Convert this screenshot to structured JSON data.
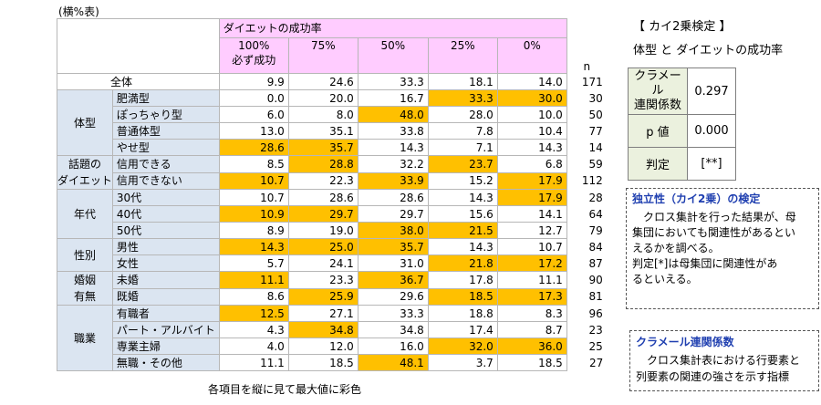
{
  "caption": "(横%表)",
  "header": {
    "group_title": "ダイエットの成功率",
    "columns": [
      {
        "line1": "100%",
        "line2": "必ず成功"
      },
      {
        "line1": "75%",
        "line2": ""
      },
      {
        "line1": "50%",
        "line2": ""
      },
      {
        "line1": "25%",
        "line2": ""
      },
      {
        "line1": "0%",
        "line2": ""
      }
    ],
    "n_label": "n"
  },
  "overall": {
    "label": "全体",
    "values": [
      "9.9",
      "24.6",
      "33.3",
      "18.1",
      "14.0"
    ],
    "n": "171"
  },
  "groups": [
    {
      "label_lines": [
        "体型"
      ],
      "rows": [
        {
          "label": "肥満型",
          "values": [
            "0.0",
            "20.0",
            "16.7",
            "33.3",
            "30.0"
          ],
          "hl": [
            false,
            false,
            false,
            true,
            true
          ],
          "n": "30"
        },
        {
          "label": "ぽっちゃり型",
          "values": [
            "6.0",
            "8.0",
            "48.0",
            "28.0",
            "10.0"
          ],
          "hl": [
            false,
            false,
            true,
            false,
            false
          ],
          "n": "50"
        },
        {
          "label": "普通体型",
          "values": [
            "13.0",
            "35.1",
            "33.8",
            "7.8",
            "10.4"
          ],
          "hl": [
            false,
            false,
            false,
            false,
            false
          ],
          "n": "77"
        },
        {
          "label": "やせ型",
          "values": [
            "28.6",
            "35.7",
            "14.3",
            "7.1",
            "14.3"
          ],
          "hl": [
            true,
            true,
            false,
            false,
            false
          ],
          "n": "14"
        }
      ]
    },
    {
      "label_lines": [
        "話題の",
        "ダイエット"
      ],
      "rows": [
        {
          "label": "信用できる",
          "values": [
            "8.5",
            "28.8",
            "32.2",
            "23.7",
            "6.8"
          ],
          "hl": [
            false,
            true,
            false,
            true,
            false
          ],
          "n": "59"
        },
        {
          "label": "信用できない",
          "values": [
            "10.7",
            "22.3",
            "33.9",
            "15.2",
            "17.9"
          ],
          "hl": [
            true,
            false,
            true,
            false,
            true
          ],
          "n": "112"
        }
      ]
    },
    {
      "label_lines": [
        "年代"
      ],
      "rows": [
        {
          "label": "30代",
          "values": [
            "10.7",
            "28.6",
            "28.6",
            "14.3",
            "17.9"
          ],
          "hl": [
            false,
            false,
            false,
            false,
            true
          ],
          "n": "28"
        },
        {
          "label": "40代",
          "values": [
            "10.9",
            "29.7",
            "29.7",
            "15.6",
            "14.1"
          ],
          "hl": [
            true,
            true,
            false,
            false,
            false
          ],
          "n": "64"
        },
        {
          "label": "50代",
          "values": [
            "8.9",
            "19.0",
            "38.0",
            "21.5",
            "12.7"
          ],
          "hl": [
            false,
            false,
            true,
            true,
            false
          ],
          "n": "79"
        }
      ]
    },
    {
      "label_lines": [
        "性別"
      ],
      "rows": [
        {
          "label": "男性",
          "values": [
            "14.3",
            "25.0",
            "35.7",
            "14.3",
            "10.7"
          ],
          "hl": [
            true,
            true,
            true,
            false,
            false
          ],
          "n": "84"
        },
        {
          "label": "女性",
          "values": [
            "5.7",
            "24.1",
            "31.0",
            "21.8",
            "17.2"
          ],
          "hl": [
            false,
            false,
            false,
            true,
            true
          ],
          "n": "87"
        }
      ]
    },
    {
      "label_lines": [
        "婚姻",
        "有無"
      ],
      "rows": [
        {
          "label": "未婚",
          "values": [
            "11.1",
            "23.3",
            "36.7",
            "17.8",
            "11.1"
          ],
          "hl": [
            true,
            false,
            true,
            false,
            false
          ],
          "n": "90"
        },
        {
          "label": "既婚",
          "values": [
            "8.6",
            "25.9",
            "29.6",
            "18.5",
            "17.3"
          ],
          "hl": [
            false,
            true,
            false,
            true,
            true
          ],
          "n": "81"
        }
      ]
    },
    {
      "label_lines": [
        "職業"
      ],
      "rows": [
        {
          "label": "有職者",
          "values": [
            "12.5",
            "27.1",
            "33.3",
            "18.8",
            "8.3"
          ],
          "hl": [
            true,
            false,
            false,
            false,
            false
          ],
          "n": "96"
        },
        {
          "label": "パート・アルバイト",
          "values": [
            "4.3",
            "34.8",
            "34.8",
            "17.4",
            "8.7"
          ],
          "hl": [
            false,
            true,
            false,
            false,
            false
          ],
          "n": "23"
        },
        {
          "label": "専業主婦",
          "values": [
            "4.0",
            "12.0",
            "16.0",
            "32.0",
            "36.0"
          ],
          "hl": [
            false,
            false,
            false,
            true,
            true
          ],
          "n": "25"
        },
        {
          "label": "無職・その他",
          "values": [
            "11.1",
            "18.5",
            "48.1",
            "3.7",
            "18.5"
          ],
          "hl": [
            false,
            false,
            true,
            false,
            false
          ],
          "n": "27"
        }
      ]
    }
  ],
  "footnote": "各項目を縦に見て最大値に彩色",
  "chi": {
    "title": "【 カイ2乗検定 】",
    "subtitle": "体型 と ダイエットの成功率",
    "cramer_label_1": "クラメール",
    "cramer_label_2": "連関係数",
    "cramer_value": "0.297",
    "p_label": "p 値",
    "p_value": "0.000",
    "judge_label": "判定",
    "judge_value": "[**]"
  },
  "box1": {
    "title": "独立性（カイ2乗）の検定",
    "lines": [
      "クロス集計を行った結果が、母",
      "集団においても関連性があるとい",
      "えるかを調べる。",
      "判定[*]は母集団に関連性があ",
      "るといえる。"
    ]
  },
  "box2": {
    "title": "クラメール連関係数",
    "lines": [
      "クロス集計表における行要素と",
      "列要素の関連の強さを示す指標"
    ]
  },
  "colors": {
    "highlight": "#ffc000",
    "header_pink": "#ffccff",
    "label_blue": "#dbe5f1",
    "chi_label_green": "#ebf1de",
    "box_title_blue": "#1f3fb0"
  }
}
